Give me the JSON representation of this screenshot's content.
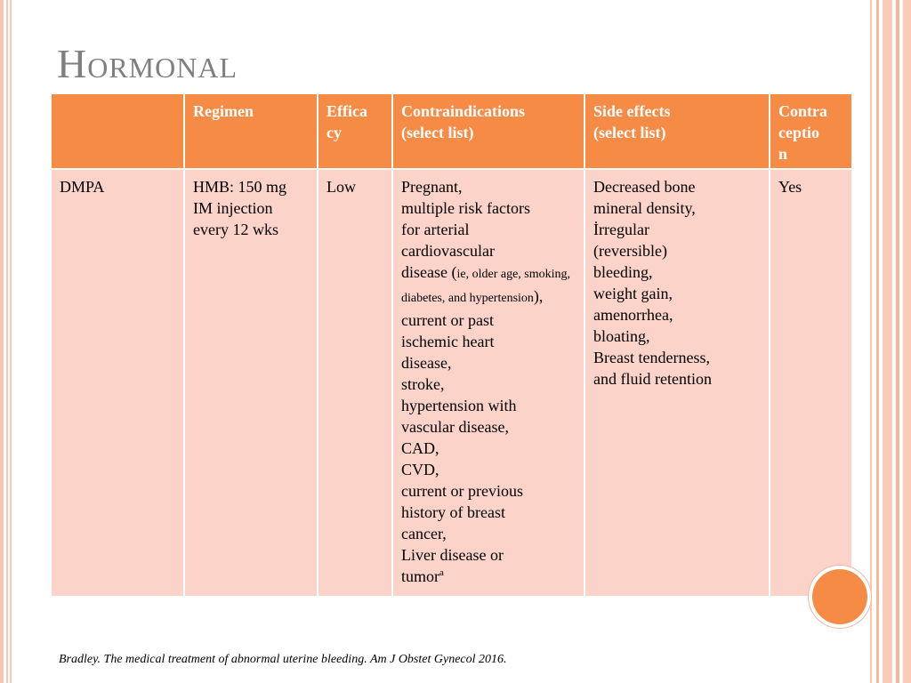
{
  "title": "Hormonal",
  "table": {
    "headers": [
      "",
      "Regimen",
      "Efficacy",
      "Contraindications (select list)",
      "Side effects (select  list)",
      "Contraception"
    ],
    "header_lines": {
      "efficacy": [
        "Effica",
        "cy"
      ],
      "contraindications": [
        "Contraindications",
        "(select list)"
      ],
      "side_effects": [
        "Side effects",
        "(select  list)"
      ],
      "contraception": [
        "Contra",
        "ceptio",
        "n"
      ]
    },
    "row": {
      "method": "DMPA",
      "regimen": [
        "HMB: 150 mg",
        "IM injection",
        "every 12 wks"
      ],
      "efficacy": "Low",
      "contraindications": {
        "before": [
          "Pregnant,",
          "multiple risk factors",
          "for arterial",
          "cardiovascular"
        ],
        "disease_open": "disease (",
        "note": "ie, older age, smoking, diabetes, and hypertension",
        "note_close": "),",
        "after": [
          "current or past",
          "ischemic heart",
          "disease,",
          "stroke,",
          "hypertension with",
          "vascular disease,",
          "CAD,",
          "CVD,",
          "current or previous",
          "history of breast",
          "cancer,",
          "Liver disease or"
        ],
        "last": "tumor",
        "last_sup": "a"
      },
      "side_effects": [
        "Decreased bone",
        "mineral density,",
        "İrregular",
        "(reversible)",
        "bleeding,",
        "weight gain,",
        "amenorrhea,",
        "bloating,",
        "Breast tenderness,",
        "and fluid retention"
      ],
      "contraception": "Yes"
    }
  },
  "citation": "Bradley. The medical treatment of abnormal uterine bleeding. Am J Obstet Gynecol 2016.",
  "colors": {
    "header": "#f68b46",
    "cell": "#fbd3c9",
    "title": "#7f7f7f",
    "stripe": "#f7c7b3"
  }
}
